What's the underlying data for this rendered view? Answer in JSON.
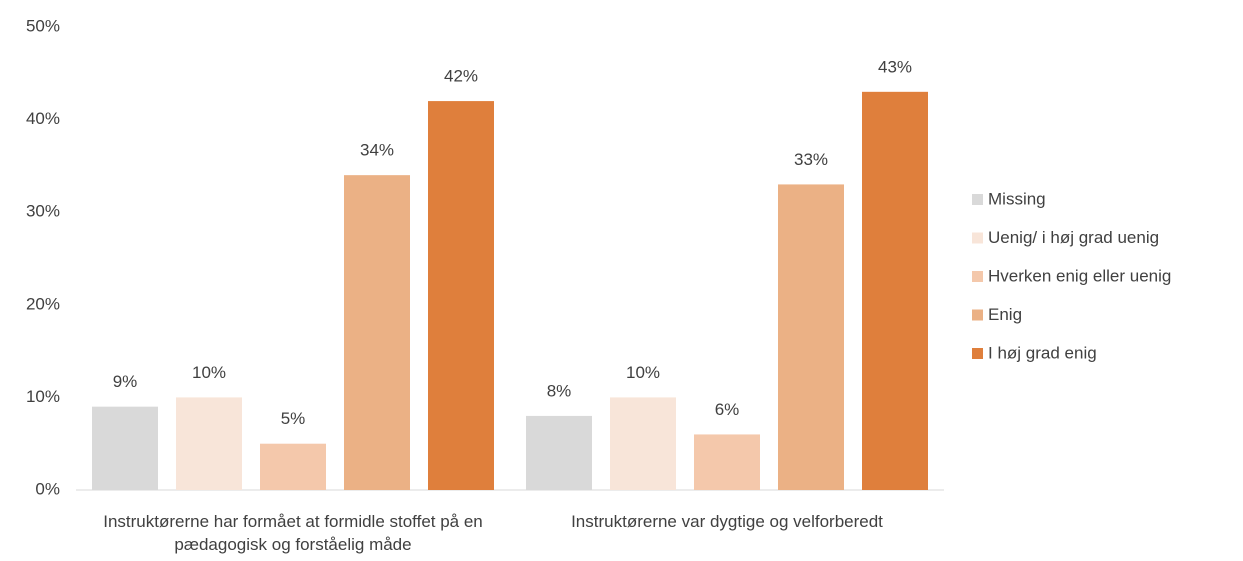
{
  "chart_data": {
    "type": "bar",
    "categories": [
      "Instruktørerne har formået at formidle stoffet på en pædagogisk og forståelig måde",
      "Instruktørerne var dygtige og velforberedt"
    ],
    "series": [
      {
        "name": "Missing",
        "color": "#d9d9d9",
        "values": [
          9,
          8
        ],
        "value_labels": [
          "9%",
          "8%"
        ]
      },
      {
        "name": "Uenig/ i høj grad uenig",
        "color": "#f8e5d9",
        "values": [
          10,
          10
        ],
        "value_labels": [
          "10%",
          "10%"
        ]
      },
      {
        "name": "Hverken enig eller uenig",
        "color": "#f4c8ab",
        "values": [
          5,
          6
        ],
        "value_labels": [
          "5%",
          "6%"
        ]
      },
      {
        "name": "Enig",
        "color": "#ebb185",
        "values": [
          34,
          33
        ],
        "value_labels": [
          "34%",
          "33%"
        ]
      },
      {
        "name": "I høj grad enig",
        "color": "#df7f3c",
        "values": [
          42,
          43
        ],
        "value_labels": [
          "42%",
          "43%"
        ]
      }
    ],
    "ylim": [
      0,
      50
    ],
    "yticks": [
      {
        "value": 0,
        "label": "0%"
      },
      {
        "value": 10,
        "label": "10%"
      },
      {
        "value": 20,
        "label": "20%"
      },
      {
        "value": 30,
        "label": "30%"
      },
      {
        "value": 40,
        "label": "40%"
      },
      {
        "value": 50,
        "label": "50%"
      }
    ],
    "grid": false,
    "legend": "right"
  }
}
